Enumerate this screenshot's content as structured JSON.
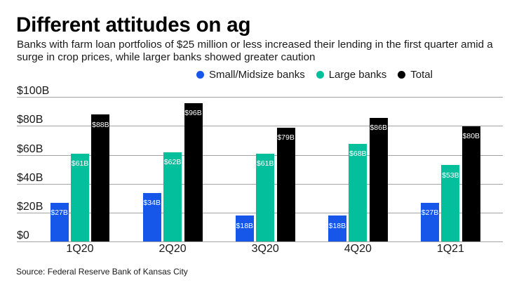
{
  "header": {
    "title": "Different attitudes on ag",
    "subtitle": "Banks with farm loan portfolios of $25 million or less increased their lending in the first quarter amid a surge in crop prices, while larger banks showed greater caution",
    "subtitle_lines": [
      "Banks with farm loan portfolios of $25 million or less increased their lending in the first quarter amid a",
      "surge in crop prices, while larger banks showed greater caution"
    ]
  },
  "source_note": "Source: Federal Reserve Bank of Kansas City",
  "colors": {
    "small_midsize": "#1657ea",
    "large": "#04bf9c",
    "total": "#000000",
    "gridline": "#a3a3a3",
    "axis_text": "#1a1a1a",
    "bar_label": "#ffffff",
    "background": "#ffffff"
  },
  "chart_data": {
    "type": "bar",
    "title": "Different attitudes on ag",
    "categories": [
      "1Q20",
      "2Q20",
      "3Q20",
      "4Q20",
      "1Q21"
    ],
    "series": [
      {
        "name": "Small/Midsize banks",
        "color": "#1657ea",
        "values": [
          27,
          34,
          18,
          18,
          27
        ],
        "labels": [
          "$27B",
          "$34B",
          "$18B",
          "$18B",
          "$27B"
        ]
      },
      {
        "name": "Large banks",
        "color": "#04bf9c",
        "values": [
          61,
          62,
          61,
          68,
          53
        ],
        "labels": [
          "$61B",
          "$62B",
          "$61B",
          "$68B",
          "$53B"
        ]
      },
      {
        "name": "Total",
        "color": "#000000",
        "values": [
          88,
          96,
          79,
          86,
          80
        ],
        "labels": [
          "$88B",
          "$96B",
          "$79B",
          "$86B",
          "$80B"
        ]
      }
    ],
    "y_ticks": [
      {
        "value": 0,
        "label": "$0"
      },
      {
        "value": 20,
        "label": "$20B"
      },
      {
        "value": 40,
        "label": "$40B"
      },
      {
        "value": 60,
        "label": "$60B"
      },
      {
        "value": 80,
        "label": "$80B"
      },
      {
        "value": 100,
        "label": "$100B"
      }
    ],
    "ylim": [
      0,
      100
    ],
    "grid": true,
    "legend_position": "top",
    "xlabel": "",
    "ylabel": ""
  }
}
